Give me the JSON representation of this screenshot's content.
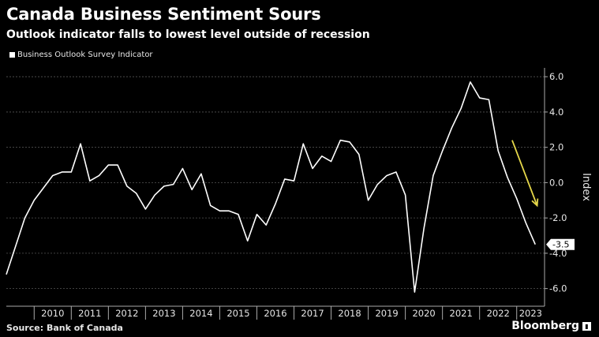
{
  "header": {
    "title": "Canada Business Sentiment Sours",
    "subtitle": "Outlook indicator falls to lowest level outside of recession"
  },
  "footer": {
    "source": "Source: Bank of Canada",
    "brand": "Bloomberg"
  },
  "colors": {
    "background": "#000000",
    "line": "#ffffff",
    "arrow": "#e6d84a",
    "grid": "#555555"
  },
  "chart_data": {
    "type": "line",
    "legend_position": "top-left",
    "grid": true,
    "ylabel": "Index",
    "ylim": [
      -7.0,
      6.5
    ],
    "y_ticks": [
      "6.0",
      "4.0",
      "2.0",
      "0.0",
      "-2.0",
      "-4.0",
      "-6.0"
    ],
    "y_tick_values": [
      6,
      4,
      2,
      0,
      -2,
      -4,
      -6
    ],
    "x_ticks": [
      "2010",
      "2011",
      "2012",
      "2013",
      "2014",
      "2015",
      "2016",
      "2017",
      "2018",
      "2019",
      "2020",
      "2021",
      "2022",
      "2023"
    ],
    "x_range": [
      "2009-Q2",
      "2023-Q4"
    ],
    "last_value_label": "-3.5",
    "annotation": "downward arrow",
    "series": [
      {
        "name": "Business Outlook Survey Indicator",
        "x": [
          "2009-Q2",
          "2009-Q3",
          "2009-Q4",
          "2010-Q1",
          "2010-Q2",
          "2010-Q3",
          "2010-Q4",
          "2011-Q1",
          "2011-Q2",
          "2011-Q3",
          "2011-Q4",
          "2012-Q1",
          "2012-Q2",
          "2012-Q3",
          "2012-Q4",
          "2013-Q1",
          "2013-Q2",
          "2013-Q3",
          "2013-Q4",
          "2014-Q1",
          "2014-Q2",
          "2014-Q3",
          "2014-Q4",
          "2015-Q1",
          "2015-Q2",
          "2015-Q3",
          "2015-Q4",
          "2016-Q1",
          "2016-Q2",
          "2016-Q3",
          "2016-Q4",
          "2017-Q1",
          "2017-Q2",
          "2017-Q3",
          "2017-Q4",
          "2018-Q1",
          "2018-Q2",
          "2018-Q3",
          "2018-Q4",
          "2019-Q1",
          "2019-Q2",
          "2019-Q3",
          "2019-Q4",
          "2020-Q1",
          "2020-Q2",
          "2020-Q3",
          "2020-Q4",
          "2021-Q1",
          "2021-Q2",
          "2021-Q3",
          "2021-Q4",
          "2022-Q1",
          "2022-Q2",
          "2022-Q3",
          "2022-Q4",
          "2023-Q1",
          "2023-Q2",
          "2023-Q3"
        ],
        "values": [
          -5.2,
          -3.6,
          -2.0,
          -1.0,
          -0.3,
          0.4,
          0.6,
          0.6,
          2.2,
          0.1,
          0.4,
          1.0,
          1.0,
          -0.2,
          -0.6,
          -1.5,
          -0.7,
          -0.2,
          -0.1,
          0.8,
          -0.4,
          0.5,
          -1.3,
          -1.6,
          -1.6,
          -1.8,
          -3.3,
          -1.8,
          -2.4,
          -1.2,
          0.2,
          0.1,
          2.2,
          0.8,
          1.5,
          1.2,
          2.4,
          2.3,
          1.6,
          -1.0,
          -0.1,
          0.4,
          0.6,
          -0.7,
          -6.2,
          -2.6,
          0.4,
          1.8,
          3.1,
          4.2,
          5.7,
          4.8,
          4.7,
          1.8,
          0.3,
          -0.9,
          -2.3,
          -3.5
        ]
      }
    ]
  }
}
